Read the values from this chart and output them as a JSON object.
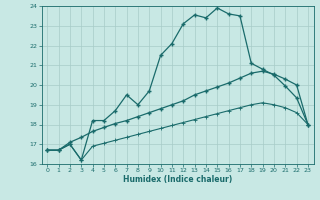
{
  "xlabel": "Humidex (Indice chaleur)",
  "xlim": [
    -0.5,
    23.5
  ],
  "ylim": [
    16,
    24
  ],
  "xticks": [
    0,
    1,
    2,
    3,
    4,
    5,
    6,
    7,
    8,
    9,
    10,
    11,
    12,
    13,
    14,
    15,
    16,
    17,
    18,
    19,
    20,
    21,
    22,
    23
  ],
  "yticks": [
    16,
    17,
    18,
    19,
    20,
    21,
    22,
    23,
    24
  ],
  "bg_color": "#c8e8e4",
  "grid_color": "#a8ccc8",
  "line_color": "#1a6b6b",
  "line1_x": [
    0,
    1,
    2,
    3,
    4,
    5,
    6,
    7,
    8,
    9,
    10,
    11,
    12,
    13,
    14,
    15,
    16,
    17,
    18,
    19,
    20,
    21,
    22,
    23
  ],
  "line1_y": [
    16.7,
    16.7,
    17.0,
    16.2,
    18.2,
    18.2,
    18.7,
    19.5,
    19.0,
    19.7,
    21.5,
    22.1,
    23.1,
    23.55,
    23.4,
    23.9,
    23.6,
    23.5,
    21.1,
    20.8,
    20.5,
    19.95,
    19.35,
    18.0
  ],
  "line2_x": [
    0,
    1,
    2,
    3,
    4,
    5,
    6,
    7,
    8,
    9,
    10,
    11,
    12,
    13,
    14,
    15,
    16,
    17,
    18,
    19,
    20,
    21,
    22,
    23
  ],
  "line2_y": [
    16.7,
    16.7,
    17.1,
    17.35,
    17.65,
    17.85,
    18.05,
    18.2,
    18.4,
    18.6,
    18.8,
    19.0,
    19.2,
    19.5,
    19.7,
    19.9,
    20.1,
    20.35,
    20.6,
    20.7,
    20.55,
    20.3,
    20.0,
    18.0
  ],
  "line3_x": [
    0,
    1,
    2,
    3,
    4,
    5,
    6,
    7,
    8,
    9,
    10,
    11,
    12,
    13,
    14,
    15,
    16,
    17,
    18,
    19,
    20,
    21,
    22,
    23
  ],
  "line3_y": [
    16.7,
    16.7,
    17.0,
    16.2,
    16.9,
    17.05,
    17.2,
    17.35,
    17.5,
    17.65,
    17.8,
    17.95,
    18.1,
    18.25,
    18.4,
    18.55,
    18.7,
    18.85,
    19.0,
    19.1,
    19.0,
    18.85,
    18.6,
    18.0
  ]
}
